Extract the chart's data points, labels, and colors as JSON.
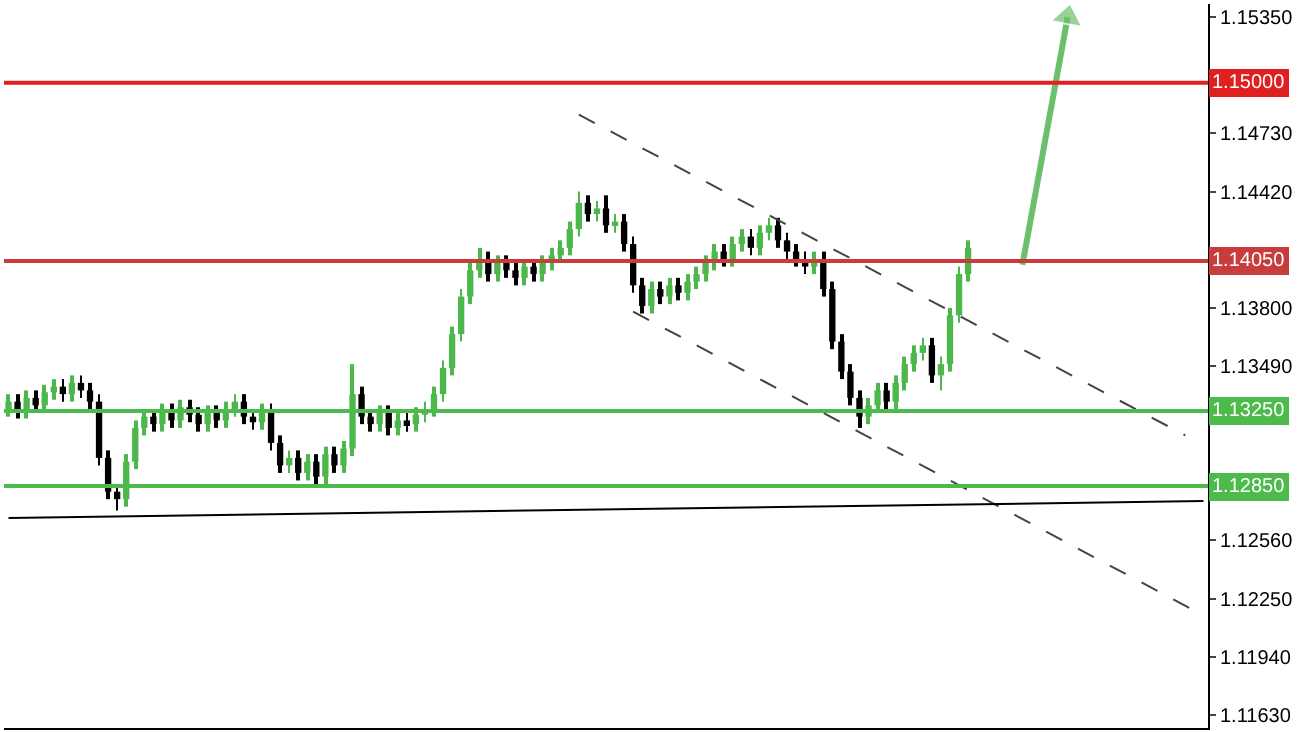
{
  "chart_data": {
    "type": "candlestick",
    "categories": [
      null,
      null,
      null,
      null,
      null,
      null,
      null,
      null,
      null,
      null,
      null,
      null,
      null,
      null,
      null,
      null,
      null,
      null,
      null,
      null,
      null,
      null,
      null,
      null,
      null,
      null,
      null,
      null,
      null,
      null,
      null,
      null,
      null,
      null,
      null,
      null,
      null,
      null,
      null,
      null,
      null,
      null,
      null,
      null,
      null,
      null,
      null,
      null,
      null,
      null,
      null,
      null,
      null,
      null,
      null,
      null,
      null,
      null,
      null,
      null,
      null,
      null,
      null,
      null,
      null,
      null,
      null,
      null,
      null,
      null,
      null,
      null,
      null,
      null,
      null,
      null,
      null,
      null,
      null,
      null,
      null,
      null,
      null,
      null,
      null,
      null,
      null,
      null,
      null,
      null,
      null,
      null,
      null,
      null,
      null,
      null,
      null,
      null,
      null,
      null,
      null,
      null,
      null,
      null,
      null,
      null,
      null,
      null,
      null,
      null,
      null,
      null,
      null,
      null,
      null,
      null,
      null,
      null,
      null,
      null,
      null,
      null,
      null,
      null,
      null,
      null,
      null,
      null,
      null,
      null,
      null,
      null,
      null
    ],
    "series": [
      {
        "colors": [
          "#4cb84c",
          "#000000",
          "#4cb84c",
          "#000000",
          "#4cb84c",
          "#4cb84c",
          "#000000",
          "#4cb84c",
          "#000000",
          "#000000",
          "#000000",
          "#000000",
          "#000000",
          "#4cb84c",
          "#4cb84c",
          "#4cb84c",
          "#000000",
          "#4cb84c",
          "#000000",
          "#4cb84c",
          "#000000",
          "#000000",
          "#4cb84c",
          "#000000",
          "#4cb84c",
          "#4cb84c",
          "#000000",
          "#000000",
          "#4cb84c",
          "#000000",
          "#000000",
          "#4cb84c",
          "#000000",
          "#4cb84c",
          "#000000",
          "#4cb84c",
          "#000000",
          "#4cb84c",
          "#4cb84c",
          "#000000",
          "#000000",
          "#4cb84c",
          "#000000",
          "#4cb84c",
          "#000000",
          "#4cb84c",
          "#4cb84c",
          "#4cb84c",
          "#4cb84c",
          "#4cb84c",
          "#4cb84c",
          "#4cb84c",
          "#4cb84c",
          "#000000",
          "#4cb84c",
          "#000000",
          "#000000",
          "#4cb84c",
          "#000000",
          "#4cb84c",
          "#4cb84c",
          "#4cb84c",
          "#4cb84c",
          "#4cb84c",
          "#000000",
          "#4cb84c",
          "#000000",
          "#4cb84c",
          "#000000",
          "#000000",
          "#000000",
          "#4cb84c",
          "#000000",
          "#4cb84c",
          "#000000",
          "#4cb84c",
          "#4cb84c",
          "#4cb84c",
          "#4cb84c",
          "#000000",
          "#4cb84c",
          "#4cb84c",
          "#000000",
          "#4cb84c",
          "#4cb84c",
          "#000000",
          "#000000",
          "#000000",
          "#000000",
          "#4cb84c",
          "#000000",
          "#000000",
          "#000000",
          "#000000",
          "#000000",
          "#4cb84c",
          "#4cb84c",
          "#000000",
          "#4cb84c",
          "#4cb84c",
          "#4cb84c",
          "#4cb84c",
          "#000000",
          "#4cb84c",
          "#4cb84c",
          "#4cb84c",
          "#4cb84c",
          null,
          null,
          null,
          null,
          null,
          null,
          null,
          null,
          null,
          null,
          null,
          null,
          null,
          null,
          null,
          null,
          null,
          null,
          null,
          null,
          null,
          null,
          null,
          null,
          null,
          null
        ],
        "ohlc": [
          [
            1.1326,
            1.1334,
            1.1322,
            1.133
          ],
          [
            1.133,
            1.1334,
            1.1321,
            1.1325
          ],
          [
            1.1325,
            1.1336,
            1.1321,
            1.1332
          ],
          [
            1.1332,
            1.1336,
            1.1324,
            1.1328
          ],
          [
            1.1328,
            1.1339,
            1.1324,
            1.1335
          ],
          [
            1.1335,
            1.1342,
            1.1331,
            1.1338
          ],
          [
            1.1338,
            1.1342,
            1.133,
            1.1334
          ],
          [
            1.1334,
            1.1344,
            1.133,
            1.134
          ],
          [
            1.134,
            1.1344,
            1.1332,
            1.1336
          ],
          [
            1.1336,
            1.134,
            1.1326,
            1.133
          ],
          [
            1.133,
            1.1334,
            1.1296,
            1.13
          ],
          [
            1.13,
            1.1304,
            1.1278,
            1.1282
          ],
          [
            1.1282,
            1.1286,
            1.1272,
            1.1278
          ],
          [
            1.1278,
            1.1302,
            1.1274,
            1.1298
          ],
          [
            1.1298,
            1.132,
            1.1294,
            1.1316
          ],
          [
            1.1316,
            1.1326,
            1.1312,
            1.1322
          ],
          [
            1.1322,
            1.1326,
            1.1314,
            1.1318
          ],
          [
            1.1318,
            1.1329,
            1.1314,
            1.1325
          ],
          [
            1.1325,
            1.1329,
            1.1316,
            1.132
          ],
          [
            1.132,
            1.1331,
            1.1316,
            1.1327
          ],
          [
            1.1327,
            1.1331,
            1.1319,
            1.1323
          ],
          [
            1.1323,
            1.1327,
            1.1314,
            1.1318
          ],
          [
            1.1318,
            1.1328,
            1.1314,
            1.1324
          ],
          [
            1.1324,
            1.1328,
            1.1316,
            1.132
          ],
          [
            1.132,
            1.133,
            1.1316,
            1.1326
          ],
          [
            1.1326,
            1.1334,
            1.1322,
            1.133
          ],
          [
            1.133,
            1.1334,
            1.1318,
            1.1322
          ],
          [
            1.1322,
            1.1326,
            1.1315,
            1.1319
          ],
          [
            1.1319,
            1.1329,
            1.1315,
            1.1325
          ],
          [
            1.1325,
            1.1329,
            1.1304,
            1.1308
          ],
          [
            1.1308,
            1.1312,
            1.1292,
            1.1296
          ],
          [
            1.1296,
            1.1304,
            1.1292,
            1.13
          ],
          [
            1.13,
            1.1304,
            1.1288,
            1.1292
          ],
          [
            1.1292,
            1.1302,
            1.1288,
            1.1298
          ],
          [
            1.1298,
            1.1302,
            1.1286,
            1.129
          ],
          [
            1.129,
            1.1306,
            1.1286,
            1.1302
          ],
          [
            1.1302,
            1.1306,
            1.1292,
            1.1296
          ],
          [
            1.1296,
            1.1309,
            1.1292,
            1.1305
          ],
          [
            1.1305,
            1.135,
            1.1301,
            1.1334
          ],
          [
            1.1334,
            1.1338,
            1.1318,
            1.1322
          ],
          [
            1.1322,
            1.1326,
            1.1314,
            1.1318
          ],
          [
            1.1318,
            1.1328,
            1.1314,
            1.1324
          ],
          [
            1.1324,
            1.1328,
            1.1312,
            1.1316
          ],
          [
            1.1316,
            1.1324,
            1.1312,
            1.132
          ],
          [
            1.132,
            1.1324,
            1.1314,
            1.1318
          ],
          [
            1.1318,
            1.1327,
            1.1314,
            1.1323
          ],
          [
            1.1323,
            1.133,
            1.1319,
            1.1326
          ],
          [
            1.1326,
            1.1338,
            1.1322,
            1.1334
          ],
          [
            1.1334,
            1.1352,
            1.133,
            1.1348
          ],
          [
            1.1348,
            1.137,
            1.1344,
            1.1366
          ],
          [
            1.1366,
            1.139,
            1.1362,
            1.1386
          ],
          [
            1.1386,
            1.1404,
            1.1382,
            1.14
          ],
          [
            1.14,
            1.1412,
            1.1396,
            1.1406
          ],
          [
            1.1406,
            1.141,
            1.1394,
            1.1398
          ],
          [
            1.1398,
            1.1408,
            1.1394,
            1.1404
          ],
          [
            1.1404,
            1.1408,
            1.1396,
            1.14
          ],
          [
            1.14,
            1.1404,
            1.1392,
            1.1396
          ],
          [
            1.1396,
            1.1406,
            1.1392,
            1.1402
          ],
          [
            1.1402,
            1.1406,
            1.1394,
            1.1398
          ],
          [
            1.1398,
            1.1408,
            1.1394,
            1.1404
          ],
          [
            1.1404,
            1.1412,
            1.14,
            1.1408
          ],
          [
            1.1408,
            1.1416,
            1.1404,
            1.1412
          ],
          [
            1.1412,
            1.1426,
            1.1408,
            1.1422
          ],
          [
            1.1422,
            1.1442,
            1.1418,
            1.1436
          ],
          [
            1.1436,
            1.144,
            1.1426,
            1.143
          ],
          [
            1.143,
            1.1437,
            1.1426,
            1.1433
          ],
          [
            1.1433,
            1.144,
            1.142,
            1.1424
          ],
          [
            1.1424,
            1.143,
            1.142,
            1.1426
          ],
          [
            1.1426,
            1.143,
            1.141,
            1.1414
          ],
          [
            1.1414,
            1.1418,
            1.1388,
            1.1392
          ],
          [
            1.1392,
            1.1396,
            1.1377,
            1.1381
          ],
          [
            1.1381,
            1.1394,
            1.1377,
            1.139
          ],
          [
            1.139,
            1.1394,
            1.1382,
            1.1386
          ],
          [
            1.1386,
            1.1396,
            1.1382,
            1.1392
          ],
          [
            1.1392,
            1.1396,
            1.1384,
            1.1388
          ],
          [
            1.1388,
            1.1398,
            1.1384,
            1.1394
          ],
          [
            1.1394,
            1.1402,
            1.139,
            1.1398
          ],
          [
            1.1398,
            1.1408,
            1.1394,
            1.1404
          ],
          [
            1.1404,
            1.1414,
            1.14,
            1.141
          ],
          [
            1.141,
            1.1414,
            1.1402,
            1.1406
          ],
          [
            1.1406,
            1.1418,
            1.1402,
            1.1414
          ],
          [
            1.1414,
            1.1422,
            1.141,
            1.1418
          ],
          [
            1.1418,
            1.1422,
            1.1408,
            1.1412
          ],
          [
            1.1412,
            1.1424,
            1.1408,
            1.142
          ],
          [
            1.142,
            1.1428,
            1.1416,
            1.1424
          ],
          [
            1.1424,
            1.1428,
            1.1412,
            1.1416
          ],
          [
            1.1416,
            1.142,
            1.1406,
            1.141
          ],
          [
            1.141,
            1.1414,
            1.1402,
            1.1406
          ],
          [
            1.1406,
            1.141,
            1.1398,
            1.1402
          ],
          [
            1.1402,
            1.141,
            1.1398,
            1.1406
          ],
          [
            1.1406,
            1.141,
            1.1386,
            1.139
          ],
          [
            1.139,
            1.1394,
            1.1358,
            1.1362
          ],
          [
            1.1362,
            1.1366,
            1.1342,
            1.1346
          ],
          [
            1.1346,
            1.135,
            1.1328,
            1.1332
          ],
          [
            1.1332,
            1.1336,
            1.1316,
            1.1322
          ],
          [
            1.1322,
            1.1332,
            1.1318,
            1.1328
          ],
          [
            1.1328,
            1.134,
            1.1324,
            1.1336
          ],
          [
            1.1336,
            1.134,
            1.1326,
            1.133
          ],
          [
            1.133,
            1.1344,
            1.1326,
            1.134
          ],
          [
            1.134,
            1.1354,
            1.1336,
            1.135
          ],
          [
            1.135,
            1.136,
            1.1346,
            1.1356
          ],
          [
            1.1356,
            1.1364,
            1.1352,
            1.136
          ],
          [
            1.136,
            1.1364,
            1.134,
            1.1344
          ],
          [
            1.1344,
            1.1354,
            1.1336,
            1.135
          ],
          [
            1.135,
            1.138,
            1.1346,
            1.1376
          ],
          [
            1.1376,
            1.1402,
            1.1372,
            1.1398
          ],
          [
            1.1398,
            1.1416,
            1.1394,
            1.1412
          ],
          null,
          null,
          null,
          null,
          null,
          null,
          null,
          null,
          null,
          null,
          null,
          null,
          null,
          null,
          null,
          null,
          null,
          null,
          null,
          null,
          null,
          null,
          null,
          null,
          null,
          null
        ]
      },
      {
        "type": "line",
        "color": "#444444",
        "line_style": "dashed",
        "values": [
          null,
          null,
          null,
          null,
          null,
          null,
          null,
          null,
          null,
          null,
          null,
          null,
          null,
          null,
          null,
          null,
          null,
          null,
          null,
          null,
          null,
          null,
          null,
          null,
          null,
          null,
          null,
          null,
          null,
          null,
          null,
          null,
          null,
          null,
          null,
          null,
          null,
          null,
          null,
          null,
          null,
          null,
          null,
          null,
          null,
          null,
          null,
          null,
          null,
          null,
          null,
          null,
          null,
          null,
          null,
          null,
          null,
          null,
          null,
          null,
          null,
          null,
          null,
          1.1483,
          null,
          null,
          null,
          null,
          null,
          null,
          null,
          null,
          null,
          null,
          null,
          null,
          null,
          null,
          null,
          null,
          null,
          null,
          null,
          null,
          null,
          null,
          null,
          null,
          null,
          null,
          null,
          null,
          null,
          null,
          null,
          null,
          null,
          null,
          null,
          null,
          null,
          null,
          null,
          null,
          null,
          null,
          null,
          null,
          null,
          null,
          null,
          null,
          null,
          null,
          null,
          null,
          null,
          null,
          null,
          null,
          null,
          null,
          null,
          null,
          null,
          null,
          null,
          null,
          null,
          null,
          1.1312,
          null,
          null
        ]
      },
      {
        "type": "line",
        "color": "#444444",
        "line_style": "dashed",
        "values": [
          null,
          null,
          null,
          null,
          null,
          null,
          null,
          null,
          null,
          null,
          null,
          null,
          null,
          null,
          null,
          null,
          null,
          null,
          null,
          null,
          null,
          null,
          null,
          null,
          null,
          null,
          null,
          null,
          null,
          null,
          null,
          null,
          null,
          null,
          null,
          null,
          null,
          null,
          null,
          null,
          null,
          null,
          null,
          null,
          null,
          null,
          null,
          null,
          null,
          null,
          null,
          null,
          null,
          null,
          null,
          null,
          null,
          null,
          null,
          null,
          null,
          null,
          null,
          null,
          null,
          null,
          null,
          null,
          null,
          1.1378,
          null,
          null,
          null,
          null,
          null,
          null,
          null,
          null,
          null,
          null,
          null,
          null,
          null,
          null,
          null,
          null,
          null,
          null,
          null,
          null,
          null,
          null,
          null,
          null,
          null,
          null,
          null,
          null,
          null,
          null,
          null,
          null,
          null,
          null,
          null,
          null,
          null,
          null,
          null,
          null,
          null,
          null,
          null,
          null,
          null,
          null,
          null,
          null,
          null,
          null,
          null,
          null,
          null,
          null,
          null,
          null,
          null,
          null,
          null,
          null,
          null,
          null,
          1.1216
        ]
      },
      {
        "type": "line",
        "color": "#000000",
        "line_style": "solid",
        "values": [
          1.1268,
          null,
          null,
          null,
          null,
          null,
          null,
          null,
          null,
          null,
          null,
          null,
          null,
          null,
          null,
          null,
          null,
          null,
          null,
          null,
          null,
          null,
          null,
          null,
          null,
          null,
          null,
          null,
          null,
          null,
          null,
          null,
          null,
          null,
          null,
          null,
          null,
          null,
          null,
          null,
          null,
          null,
          null,
          null,
          null,
          null,
          null,
          null,
          null,
          null,
          null,
          null,
          null,
          null,
          null,
          null,
          null,
          null,
          null,
          null,
          null,
          null,
          null,
          null,
          null,
          null,
          null,
          null,
          null,
          null,
          null,
          null,
          null,
          null,
          null,
          null,
          null,
          null,
          null,
          null,
          null,
          null,
          null,
          null,
          null,
          null,
          null,
          null,
          null,
          null,
          null,
          null,
          null,
          null,
          null,
          null,
          null,
          null,
          null,
          null,
          null,
          null,
          null,
          null,
          null,
          null,
          null,
          null,
          null,
          null,
          null,
          null,
          null,
          null,
          null,
          null,
          null,
          null,
          null,
          null,
          null,
          null,
          null,
          null,
          null,
          null,
          null,
          null,
          null,
          null,
          null,
          null,
          1.1277
        ]
      },
      {
        "type": "line",
        "color": "#6cbf6c",
        "line_style": "solid",
        "marker": "triangle",
        "values": [
          null,
          null,
          null,
          null,
          null,
          null,
          null,
          null,
          null,
          null,
          null,
          null,
          null,
          null,
          null,
          null,
          null,
          null,
          null,
          null,
          null,
          null,
          null,
          null,
          null,
          null,
          null,
          null,
          null,
          null,
          null,
          null,
          null,
          null,
          null,
          null,
          null,
          null,
          null,
          null,
          null,
          null,
          null,
          null,
          null,
          null,
          null,
          null,
          null,
          null,
          null,
          null,
          null,
          null,
          null,
          null,
          null,
          null,
          null,
          null,
          null,
          null,
          null,
          null,
          null,
          null,
          null,
          null,
          null,
          null,
          null,
          null,
          null,
          null,
          null,
          null,
          null,
          null,
          null,
          null,
          null,
          null,
          null,
          null,
          null,
          null,
          null,
          null,
          null,
          null,
          null,
          null,
          null,
          null,
          null,
          null,
          null,
          null,
          null,
          null,
          null,
          null,
          null,
          null,
          null,
          null,
          null,
          null,
          null,
          null,
          null,
          null,
          1.1403,
          null,
          null,
          null,
          null,
          1.1535,
          null,
          null,
          null,
          null,
          null,
          null,
          null,
          null,
          null,
          null,
          null,
          null,
          null,
          null,
          null
        ]
      }
    ],
    "ylim": [
      1.1156,
      1.1542
    ],
    "yticks": [
      {
        "value": 1.1535,
        "label": "1.15350"
      },
      {
        "value": 1.1473,
        "label": "1.14730"
      },
      {
        "value": 1.1442,
        "label": "1.14420"
      },
      {
        "value": 1.138,
        "label": "1.13800"
      },
      {
        "value": 1.1349,
        "label": "1.13490"
      },
      {
        "value": 1.1256,
        "label": "1.12560"
      },
      {
        "value": 1.1225,
        "label": "1.12250"
      },
      {
        "value": 1.1194,
        "label": "1.11940"
      },
      {
        "value": 1.1163,
        "label": "1.11630"
      }
    ],
    "tick_labels": "y",
    "ref_lines": [
      {
        "axis": "y",
        "value": 1.15,
        "label": "1.15000",
        "color": "#e02020"
      },
      {
        "axis": "y",
        "value": 1.1405,
        "label": "1.14050",
        "color": "#c83c3c"
      },
      {
        "axis": "y",
        "value": 1.1325,
        "label": "1.13250",
        "color": "#4cbb4c"
      },
      {
        "axis": "y",
        "value": 1.1285,
        "label": "1.12850",
        "color": "#4cbb4c"
      }
    ]
  }
}
